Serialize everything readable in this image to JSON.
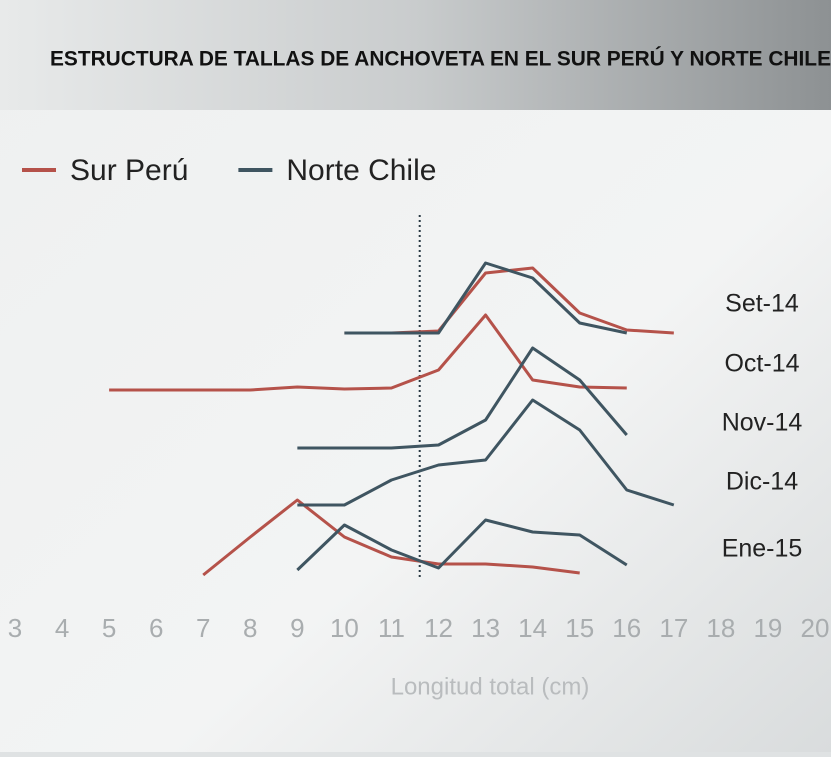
{
  "chart_data": {
    "type": "ridgeline",
    "title": "ESTRUCTURA DE TALLAS DE ANCHOVETA EN EL SUR PERÚ Y NORTE CHILE",
    "x_label": "Longitud total (cm)",
    "x": [
      5,
      6,
      7,
      8,
      9,
      10,
      11,
      12,
      13,
      14,
      15,
      16,
      17
    ],
    "categories": [
      "Set-14",
      "Oct-14",
      "Nov-14",
      "Dic-14",
      "Ene-15"
    ],
    "series": [
      {
        "name": "Sur Perú",
        "color": "#b5524a",
        "values": [
          [
            null,
            null,
            null,
            null,
            null,
            0,
            0,
            2,
            60,
            65,
            20,
            3,
            0
          ],
          [
            0,
            0,
            0,
            0,
            3,
            1,
            2,
            20,
            75,
            10,
            3,
            2,
            null
          ],
          null,
          null,
          [
            null,
            null,
            0,
            38,
            75,
            38,
            18,
            11,
            11,
            8,
            2,
            null,
            null
          ]
        ]
      },
      {
        "name": "Norte Chile",
        "color": "#3f5561",
        "values": [
          [
            null,
            null,
            null,
            null,
            null,
            0,
            0,
            0,
            70,
            55,
            10,
            0,
            null
          ],
          null,
          [
            null,
            null,
            null,
            null,
            0,
            0,
            0,
            3,
            28,
            100,
            68,
            13,
            null
          ],
          [
            null,
            null,
            null,
            null,
            0,
            0,
            25,
            40,
            45,
            105,
            75,
            15,
            0
          ],
          [
            null,
            null,
            null,
            null,
            5,
            50,
            25,
            7,
            55,
            43,
            40,
            10,
            null
          ]
        ]
      }
    ],
    "reference_x": 11.6,
    "xlim": [
      3,
      20
    ],
    "xticks": [
      3,
      4,
      5,
      6,
      7,
      8,
      9,
      10,
      11,
      12,
      13,
      14,
      15,
      16,
      17,
      18,
      19,
      20
    ],
    "legend": "top-left"
  }
}
